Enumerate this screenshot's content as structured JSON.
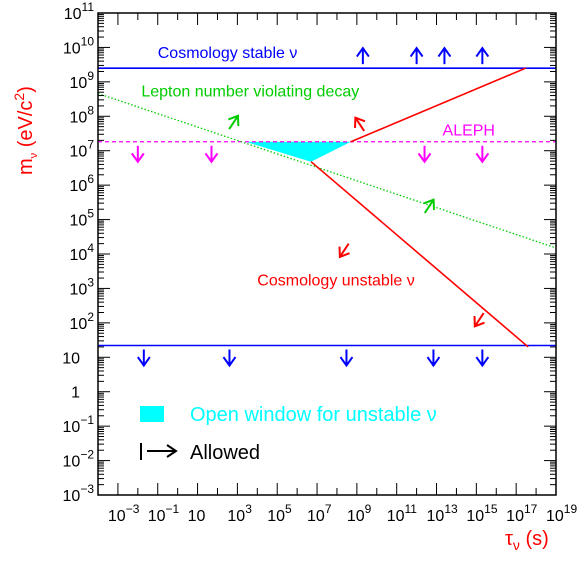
{
  "chart_data": {
    "type": "line",
    "title": "",
    "x_axis": {
      "label": "τν (s)",
      "scale": "log",
      "range": [
        0.0001,
        1e+19
      ],
      "tick_labels": [
        {
          "value": 0.001,
          "base": "10",
          "exp": "−3"
        },
        {
          "value": 0.1,
          "base": "10",
          "exp": "−1"
        },
        {
          "value": 10,
          "base": "10",
          "exp": ""
        },
        {
          "value": 1000,
          "base": "10",
          "exp": "3"
        },
        {
          "value": 100000,
          "base": "10",
          "exp": "5"
        },
        {
          "value": 10000000,
          "base": "10",
          "exp": "7"
        },
        {
          "value": 1000000000,
          "base": "10",
          "exp": "9"
        },
        {
          "value": 100000000000.0,
          "base": "10",
          "exp": "11"
        },
        {
          "value": 10000000000000.0,
          "base": "10",
          "exp": "13"
        },
        {
          "value": 1000000000000000.0,
          "base": "10",
          "exp": "15"
        },
        {
          "value": 1e+17,
          "base": "10",
          "exp": "17"
        },
        {
          "value": 1e+19,
          "base": "10",
          "exp": "19"
        }
      ]
    },
    "y_axis": {
      "label": "mν (eV/c²)",
      "scale": "log",
      "range": [
        0.001,
        100000000000.0
      ],
      "tick_labels": [
        {
          "value": 0.001,
          "base": "10",
          "exp": "−3"
        },
        {
          "value": 0.01,
          "base": "10",
          "exp": "−2"
        },
        {
          "value": 0.1,
          "base": "10",
          "exp": "−1"
        },
        {
          "value": 1,
          "base": "1",
          "exp": ""
        },
        {
          "value": 10,
          "base": "10",
          "exp": ""
        },
        {
          "value": 100,
          "base": "10",
          "exp": "2"
        },
        {
          "value": 1000,
          "base": "10",
          "exp": "3"
        },
        {
          "value": 10000,
          "base": "10",
          "exp": "4"
        },
        {
          "value": 100000,
          "base": "10",
          "exp": "5"
        },
        {
          "value": 1000000,
          "base": "10",
          "exp": "6"
        },
        {
          "value": 10000000,
          "base": "10",
          "exp": "7"
        },
        {
          "value": 100000000,
          "base": "10",
          "exp": "8"
        },
        {
          "value": 1000000000,
          "base": "10",
          "exp": "9"
        },
        {
          "value": 10000000000,
          "base": "10",
          "exp": "10"
        },
        {
          "value": 100000000000.0,
          "base": "10",
          "exp": "11"
        }
      ]
    },
    "lines": [
      {
        "id": "cosmology-stable-bound",
        "style": "solid",
        "color": "#0000ff",
        "points": [
          [
            0.0001,
            2500000000
          ],
          [
            1e+19,
            2500000000
          ]
        ]
      },
      {
        "id": "lower-mass-bound",
        "style": "solid",
        "color": "#0000ff",
        "points": [
          [
            0.0001,
            22
          ],
          [
            1e+19,
            22
          ]
        ]
      },
      {
        "id": "aleph-bound",
        "style": "dashed",
        "color": "#ff00ff",
        "points": [
          [
            0.0001,
            18200000
          ],
          [
            1e+19,
            18200000
          ]
        ]
      },
      {
        "id": "lepton-number-violating-decay",
        "style": "dotted",
        "color": "#00cc00",
        "points": [
          [
            0.0001,
            460000000
          ],
          [
            1e+19,
            15000
          ]
        ]
      },
      {
        "id": "cosmology-unstable-lower",
        "style": "solid",
        "color": "#ff0000",
        "points": [
          [
            5000000,
            4800000
          ],
          [
            4e+17,
            20
          ]
        ]
      },
      {
        "id": "cosmology-unstable-upper",
        "style": "solid",
        "color": "#ff0000",
        "points": [
          [
            500000000,
            18200000
          ],
          [
            3e+17,
            2500000000
          ]
        ]
      }
    ],
    "shaded_region": {
      "name": "Open window for unstable ν",
      "color": "#00ffff",
      "points": [
        [
          2500,
          18200000
        ],
        [
          500000000,
          18200000
        ],
        [
          5000000,
          4800000
        ]
      ]
    },
    "allowed_arrows": [
      {
        "color": "#0000ff",
        "direction": "up",
        "at": [
          [
            2000000000.0,
            2500000000
          ],
          [
            1000000000000.0,
            2500000000
          ],
          [
            25000000000000.0,
            2500000000
          ],
          [
            2000000000000000.0,
            2500000000
          ]
        ]
      },
      {
        "color": "#0000ff",
        "direction": "down",
        "at": [
          [
            0.02,
            22
          ],
          [
            400,
            22
          ],
          [
            300000000.0,
            22
          ],
          [
            7000000000000.0,
            22
          ],
          [
            2000000000000000.0,
            22
          ]
        ]
      },
      {
        "color": "#ff00ff",
        "direction": "down",
        "at": [
          [
            0.01,
            18200000
          ],
          [
            50,
            18200000
          ],
          [
            2500000000000.0,
            18200000
          ],
          [
            2000000000000000.0,
            18200000
          ]
        ]
      },
      {
        "color": "#00cc00",
        "direction": "up-right",
        "at": [
          [
            300,
            34000000
          ],
          [
            2000000000000.0,
            125000
          ]
        ]
      },
      {
        "color": "#ff0000",
        "direction": "up-left",
        "at": [
          [
            3000000000.0,
            30000000
          ]
        ]
      },
      {
        "color": "#ff0000",
        "direction": "down-left",
        "at": [
          [
            500000000.0,
            25000
          ],
          [
            3000000000000000.0,
            240
          ]
        ]
      }
    ],
    "annotations": [
      {
        "text": "Cosmology stable ν",
        "color": "#0000ff",
        "at": [
          0.1,
          5000000000
        ]
      },
      {
        "text": "Lepton number violating decay",
        "color": "#00cc00",
        "at": [
          0.015,
          370000000
        ]
      },
      {
        "text": "ALEPH",
        "color": "#ff00ff",
        "at": [
          20000000000000.0,
          28000000
        ]
      },
      {
        "text": "Cosmology unstable ν",
        "color": "#ff0000",
        "at": [
          10000,
          1200
        ]
      }
    ],
    "legend": {
      "placement": "bottom-left",
      "entries": [
        {
          "kind": "box",
          "color": "#00ffff",
          "text": "Open window for unstable ν",
          "text_color": "#00ffff"
        },
        {
          "kind": "arrow",
          "color": "#000000",
          "text": "Allowed",
          "text_color": "#000000"
        }
      ]
    },
    "grid": false
  }
}
